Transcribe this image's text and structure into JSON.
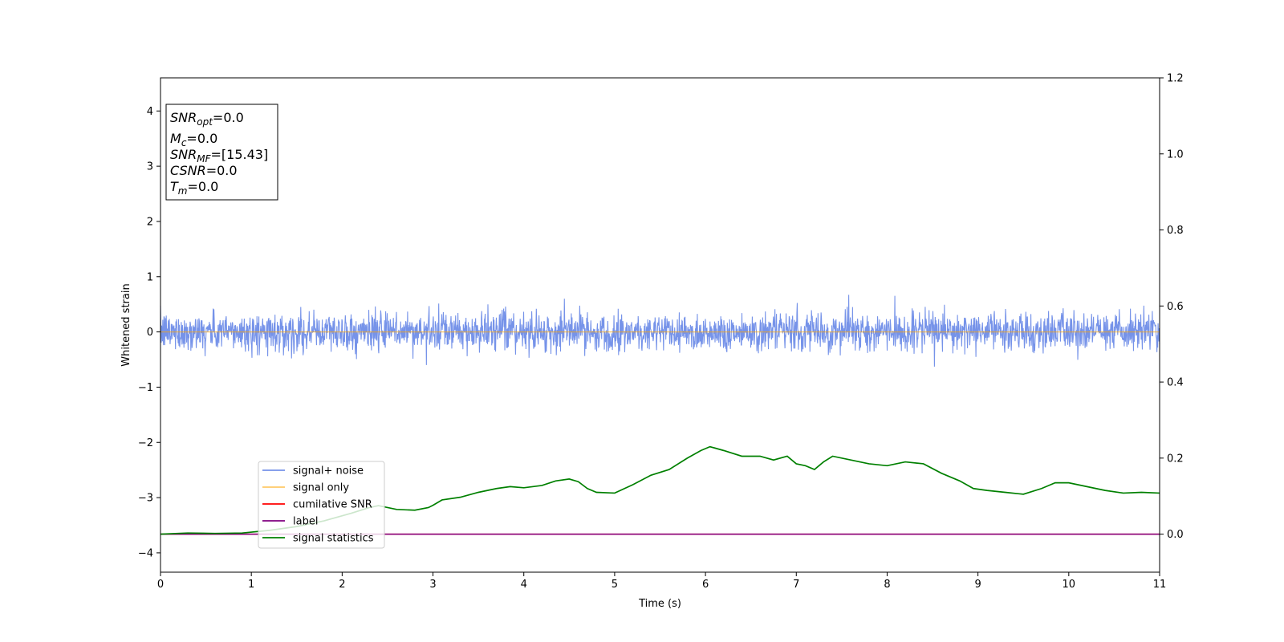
{
  "chart_data": {
    "type": "line",
    "xlabel": "Time (s)",
    "ylabel": "Whitened strain",
    "xlim": [
      0,
      11
    ],
    "ylim_left": [
      -4.35,
      4.6
    ],
    "ylim_right": [
      -0.1,
      1.2
    ],
    "x_ticks": [
      0,
      1,
      2,
      3,
      4,
      5,
      6,
      7,
      8,
      9,
      10,
      11
    ],
    "x_tick_labels": [
      "0",
      "1",
      "2",
      "3",
      "4",
      "5",
      "6",
      "7",
      "8",
      "9",
      "10",
      "11"
    ],
    "y_left_ticks": [
      4,
      3,
      2,
      1,
      0,
      -1,
      -2,
      -3,
      -4
    ],
    "y_left_tick_labels": [
      "4",
      "3",
      "2",
      "1",
      "0",
      "−1",
      "−2",
      "−3",
      "−4"
    ],
    "y_right_ticks": [
      1.2,
      1.0,
      0.8,
      0.6,
      0.4,
      0.2,
      0.0
    ],
    "y_right_tick_labels": [
      "1.2",
      "1.0",
      "0.8",
      "0.6",
      "0.4",
      "0.2",
      "0.0"
    ],
    "grid": false,
    "legend_position": "lower-left",
    "stats_box": [
      {
        "base": "SNR",
        "sub": "opt",
        "value": "=0.0"
      },
      {
        "base": "M",
        "sub": "c",
        "value": "=0.0"
      },
      {
        "base": "SNR",
        "sub": "MF",
        "value": "=[15.43]"
      },
      {
        "base": "CSNR",
        "sub": "",
        "value": "=0.0"
      },
      {
        "base": "T",
        "sub": "m",
        "value": "=0.0"
      }
    ],
    "series": [
      {
        "name": "signal+ noise",
        "color": "#4169e1",
        "axis": "left",
        "noise_amplitude": 0.45,
        "noise_range": [
          -0.85,
          0.87
        ]
      },
      {
        "name": "signal only",
        "color": "#ffa500",
        "axis": "left",
        "constant": 0.0
      },
      {
        "name": "cumilative SNR",
        "color": "#ff0000",
        "axis": "right",
        "constant": 0.0
      },
      {
        "name": "label",
        "color": "#800080",
        "axis": "right",
        "constant": 0.0
      },
      {
        "name": "signal statistics",
        "color": "#008000",
        "axis": "right",
        "x": [
          0,
          0.3,
          0.6,
          0.9,
          1.2,
          1.5,
          1.8,
          2.1,
          2.3,
          2.4,
          2.6,
          2.8,
          2.95,
          3.0,
          3.1,
          3.3,
          3.5,
          3.7,
          3.85,
          4.0,
          4.2,
          4.35,
          4.5,
          4.6,
          4.7,
          4.8,
          5.0,
          5.2,
          5.4,
          5.6,
          5.8,
          5.95,
          6.05,
          6.2,
          6.4,
          6.6,
          6.75,
          6.9,
          7.0,
          7.1,
          7.2,
          7.3,
          7.4,
          7.6,
          7.8,
          8.0,
          8.2,
          8.4,
          8.6,
          8.8,
          8.95,
          9.1,
          9.3,
          9.5,
          9.7,
          9.85,
          10.0,
          10.2,
          10.4,
          10.6,
          10.8,
          11.0
        ],
        "y": [
          0.0,
          0.003,
          0.002,
          0.003,
          0.01,
          0.02,
          0.035,
          0.055,
          0.07,
          0.075,
          0.065,
          0.063,
          0.07,
          0.076,
          0.09,
          0.097,
          0.11,
          0.12,
          0.125,
          0.122,
          0.128,
          0.14,
          0.145,
          0.138,
          0.12,
          0.11,
          0.108,
          0.13,
          0.155,
          0.17,
          0.2,
          0.22,
          0.23,
          0.22,
          0.205,
          0.205,
          0.195,
          0.205,
          0.185,
          0.18,
          0.17,
          0.19,
          0.205,
          0.195,
          0.185,
          0.18,
          0.19,
          0.185,
          0.16,
          0.14,
          0.12,
          0.115,
          0.11,
          0.105,
          0.12,
          0.135,
          0.135,
          0.125,
          0.115,
          0.108,
          0.11,
          0.108
        ]
      }
    ]
  }
}
